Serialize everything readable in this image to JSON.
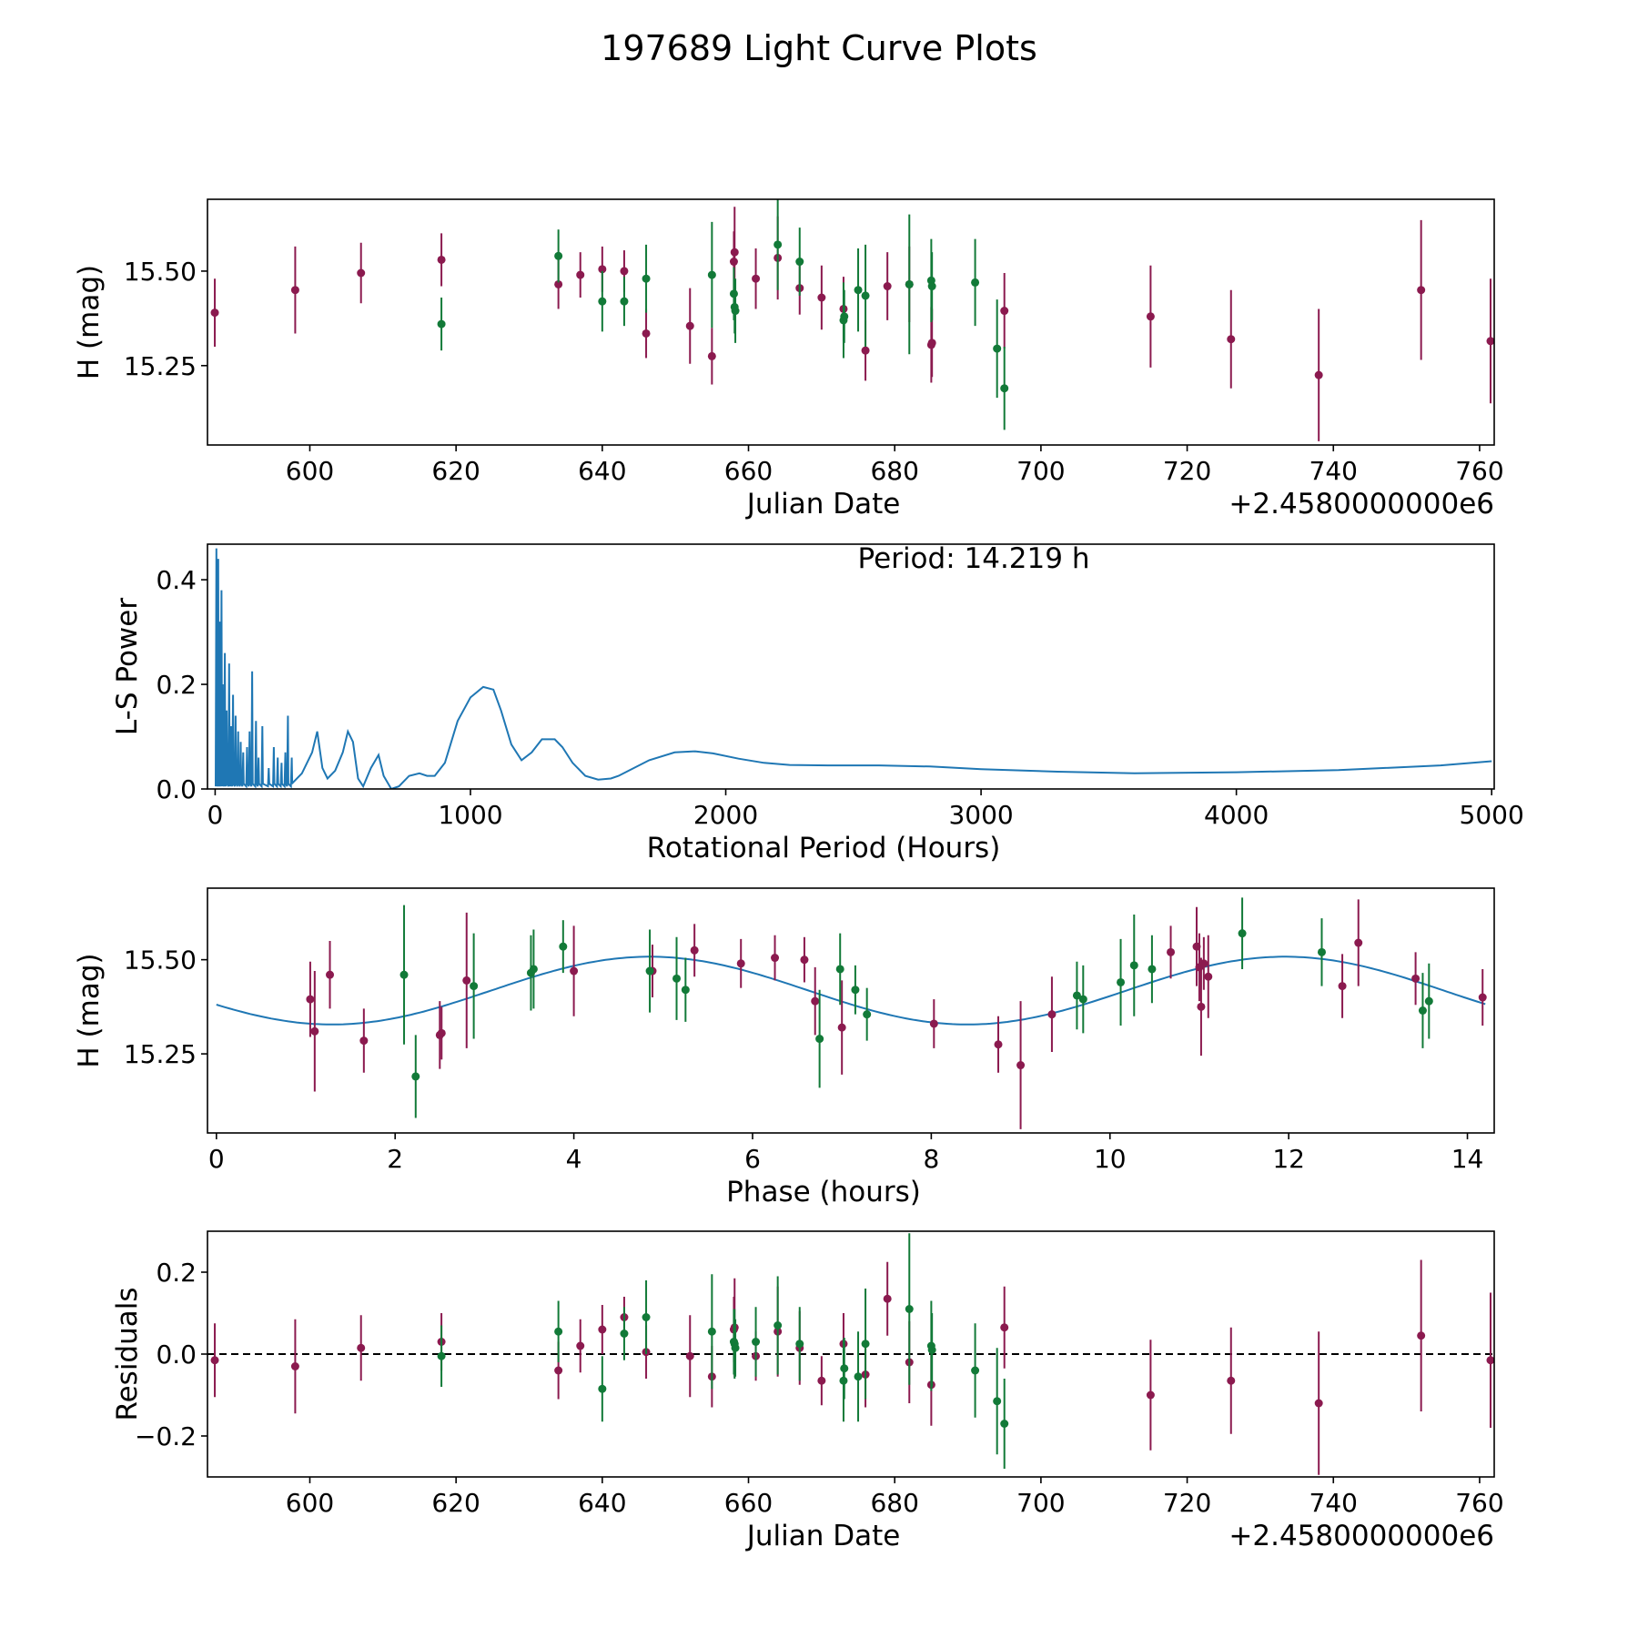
{
  "title": "197689 Light Curve Plots",
  "colors": {
    "red": "#8b1a4f",
    "green": "#127a38",
    "line": "#1f77b4",
    "axis": "#000000"
  },
  "offset_label": "+2.4580000000e6",
  "chart_data": [
    {
      "type": "scatter",
      "panel": "light-curve",
      "xlabel": "Julian Date",
      "ylabel": "H (mag)",
      "xlim": [
        586,
        762
      ],
      "ylim": [
        15.04,
        15.69
      ],
      "xticks": [
        600,
        620,
        640,
        660,
        680,
        700,
        720,
        740,
        760
      ],
      "yticks": [
        15.25,
        15.5
      ],
      "ytick_labels": [
        "15.25",
        "15.50"
      ],
      "offset_label": "+2.4580000000e6",
      "series": [
        {
          "name": "red",
          "points": [
            [
              587.0,
              15.39,
              0.09
            ],
            [
              598.0,
              15.45,
              0.115
            ],
            [
              607.0,
              15.495,
              0.08
            ],
            [
              618.0,
              15.53,
              0.07
            ],
            [
              634.0,
              15.465,
              0.065
            ],
            [
              637.0,
              15.49,
              0.06
            ],
            [
              640.0,
              15.505,
              0.06
            ],
            [
              643.0,
              15.5,
              0.055
            ],
            [
              646.0,
              15.335,
              0.065
            ],
            [
              652.0,
              15.355,
              0.1
            ],
            [
              655.0,
              15.275,
              0.075
            ],
            [
              658.0,
              15.525,
              0.08
            ],
            [
              658.1,
              15.55,
              0.12
            ],
            [
              661.0,
              15.48,
              0.08
            ],
            [
              664.0,
              15.535,
              0.11
            ],
            [
              667.0,
              15.455,
              0.07
            ],
            [
              670.0,
              15.43,
              0.085
            ],
            [
              673.0,
              15.4,
              0.085
            ],
            [
              676.0,
              15.29,
              0.08
            ],
            [
              679.0,
              15.46,
              0.09
            ],
            [
              682.0,
              15.465,
              0.1
            ],
            [
              685.0,
              15.305,
              0.1
            ],
            [
              685.1,
              15.31,
              0.09
            ],
            [
              695.0,
              15.395,
              0.1
            ],
            [
              715.0,
              15.38,
              0.135
            ],
            [
              726.0,
              15.32,
              0.13
            ],
            [
              738.0,
              15.225,
              0.175
            ],
            [
              752.0,
              15.45,
              0.185
            ],
            [
              761.5,
              15.315,
              0.165
            ]
          ]
        },
        {
          "name": "green",
          "points": [
            [
              618.0,
              15.36,
              0.07
            ],
            [
              634.0,
              15.54,
              0.07
            ],
            [
              640.0,
              15.42,
              0.08
            ],
            [
              643.0,
              15.42,
              0.065
            ],
            [
              646.0,
              15.48,
              0.09
            ],
            [
              655.0,
              15.49,
              0.14
            ],
            [
              658.0,
              15.44,
              0.07
            ],
            [
              658.1,
              15.405,
              0.07
            ],
            [
              658.2,
              15.395,
              0.085
            ],
            [
              664.0,
              15.57,
              0.12
            ],
            [
              667.0,
              15.525,
              0.09
            ],
            [
              673.0,
              15.37,
              0.1
            ],
            [
              673.1,
              15.38,
              0.07
            ],
            [
              675.0,
              15.45,
              0.11
            ],
            [
              676.0,
              15.435,
              0.135
            ],
            [
              682.0,
              15.465,
              0.185
            ],
            [
              685.0,
              15.475,
              0.11
            ],
            [
              685.1,
              15.46,
              0.09
            ],
            [
              691.0,
              15.47,
              0.115
            ],
            [
              694.0,
              15.295,
              0.13
            ],
            [
              695.0,
              15.19,
              0.11
            ]
          ]
        }
      ]
    },
    {
      "type": "line",
      "panel": "periodogram",
      "xlabel": "Rotational Period (Hours)",
      "ylabel": "L-S Power",
      "xlim": [
        -30,
        5010
      ],
      "ylim": [
        0,
        0.468
      ],
      "xticks": [
        0,
        1000,
        2000,
        3000,
        4000,
        5000
      ],
      "yticks": [
        0,
        0.2,
        0.4
      ],
      "ytick_labels": [
        "0.0",
        "0.2",
        "0.4"
      ],
      "annotation": "Period: 14.219 h",
      "noise_region": {
        "x_max": 300,
        "peaks": [
          [
            5,
            0.46
          ],
          [
            12,
            0.44
          ],
          [
            18,
            0.32
          ],
          [
            25,
            0.38
          ],
          [
            30,
            0.2
          ],
          [
            38,
            0.26
          ],
          [
            45,
            0.15
          ],
          [
            55,
            0.24
          ],
          [
            62,
            0.12
          ],
          [
            70,
            0.18
          ],
          [
            80,
            0.14
          ],
          [
            90,
            0.11
          ],
          [
            100,
            0.09
          ],
          [
            110,
            0.07
          ],
          [
            125,
            0.08
          ],
          [
            135,
            0.11
          ],
          [
            145,
            0.225
          ],
          [
            160,
            0.13
          ],
          [
            170,
            0.06
          ],
          [
            185,
            0.12
          ],
          [
            210,
            0.04
          ],
          [
            230,
            0.08
          ],
          [
            245,
            0.06
          ],
          [
            260,
            0.05
          ],
          [
            275,
            0.07
          ],
          [
            285,
            0.14
          ],
          [
            300,
            0.06
          ]
        ]
      },
      "x": [
        300,
        340,
        380,
        400,
        420,
        440,
        470,
        500,
        520,
        540,
        560,
        580,
        610,
        640,
        660,
        690,
        720,
        760,
        800,
        830,
        860,
        900,
        950,
        1000,
        1050,
        1090,
        1120,
        1160,
        1200,
        1240,
        1280,
        1330,
        1360,
        1400,
        1450,
        1500,
        1550,
        1580,
        1620,
        1700,
        1800,
        1880,
        1950,
        2050,
        2150,
        2250,
        2400,
        2600,
        2800,
        3000,
        3300,
        3600,
        4000,
        4400,
        4800,
        5000
      ],
      "values": [
        0.01,
        0.03,
        0.07,
        0.11,
        0.04,
        0.02,
        0.035,
        0.07,
        0.11,
        0.09,
        0.02,
        0.005,
        0.04,
        0.065,
        0.025,
        0.0,
        0.005,
        0.025,
        0.03,
        0.025,
        0.025,
        0.05,
        0.13,
        0.175,
        0.195,
        0.19,
        0.15,
        0.085,
        0.055,
        0.07,
        0.095,
        0.095,
        0.08,
        0.05,
        0.025,
        0.018,
        0.02,
        0.025,
        0.035,
        0.055,
        0.07,
        0.072,
        0.068,
        0.058,
        0.05,
        0.046,
        0.045,
        0.045,
        0.043,
        0.038,
        0.033,
        0.03,
        0.032,
        0.036,
        0.045,
        0.053
      ]
    },
    {
      "type": "scatter",
      "panel": "phase-folded",
      "xlabel": "Phase (hours)",
      "ylabel": "H (mag)",
      "xlim": [
        -0.1,
        14.3
      ],
      "ylim": [
        15.04,
        15.69
      ],
      "xticks": [
        0,
        2,
        4,
        6,
        8,
        10,
        12,
        14
      ],
      "yticks": [
        15.25,
        15.5
      ],
      "ytick_labels": [
        "15.25",
        "15.50"
      ],
      "model": {
        "mean": 15.418,
        "amplitude": 0.09,
        "peak_phase": 4.85,
        "period": 7.11
      },
      "series": [
        {
          "name": "red",
          "points": [
            [
              1.05,
              15.395,
              0.1
            ],
            [
              1.1,
              15.31,
              0.16
            ],
            [
              1.27,
              15.46,
              0.09
            ],
            [
              1.65,
              15.285,
              0.085
            ],
            [
              2.5,
              15.3,
              0.09
            ],
            [
              2.52,
              15.305,
              0.07
            ],
            [
              2.8,
              15.445,
              0.18
            ],
            [
              4.0,
              15.47,
              0.12
            ],
            [
              4.88,
              15.47,
              0.07
            ],
            [
              5.35,
              15.525,
              0.07
            ],
            [
              5.87,
              15.49,
              0.065
            ],
            [
              6.25,
              15.505,
              0.06
            ],
            [
              6.58,
              15.5,
              0.06
            ],
            [
              6.7,
              15.39,
              0.09
            ],
            [
              7.0,
              15.32,
              0.125
            ],
            [
              8.03,
              15.33,
              0.065
            ],
            [
              8.75,
              15.275,
              0.075
            ],
            [
              9.0,
              15.22,
              0.17
            ],
            [
              9.35,
              15.355,
              0.1
            ],
            [
              10.68,
              15.52,
              0.07
            ],
            [
              10.97,
              15.535,
              0.105
            ],
            [
              11.0,
              15.48,
              0.09
            ],
            [
              11.02,
              15.375,
              0.13
            ],
            [
              11.1,
              15.455,
              0.11
            ],
            [
              12.6,
              15.43,
              0.085
            ],
            [
              12.78,
              15.545,
              0.115
            ],
            [
              13.42,
              15.45,
              0.07
            ],
            [
              14.17,
              15.4,
              0.075
            ],
            [
              11.05,
              15.49,
              0.07
            ]
          ]
        },
        {
          "name": "green",
          "points": [
            [
              2.1,
              15.46,
              0.185
            ],
            [
              2.23,
              15.19,
              0.11
            ],
            [
              2.88,
              15.43,
              0.14
            ],
            [
              3.52,
              15.465,
              0.1
            ],
            [
              3.55,
              15.475,
              0.105
            ],
            [
              3.88,
              15.535,
              0.07
            ],
            [
              4.85,
              15.47,
              0.11
            ],
            [
              5.15,
              15.45,
              0.11
            ],
            [
              5.25,
              15.42,
              0.085
            ],
            [
              6.75,
              15.29,
              0.13
            ],
            [
              6.98,
              15.475,
              0.095
            ],
            [
              7.15,
              15.42,
              0.065
            ],
            [
              7.28,
              15.355,
              0.07
            ],
            [
              9.63,
              15.405,
              0.09
            ],
            [
              9.7,
              15.395,
              0.09
            ],
            [
              10.12,
              15.44,
              0.115
            ],
            [
              10.27,
              15.485,
              0.135
            ],
            [
              10.47,
              15.475,
              0.09
            ],
            [
              11.48,
              15.57,
              0.095
            ],
            [
              12.37,
              15.52,
              0.09
            ],
            [
              13.5,
              15.365,
              0.1
            ],
            [
              13.57,
              15.39,
              0.1
            ]
          ]
        }
      ]
    },
    {
      "type": "scatter",
      "panel": "residuals",
      "xlabel": "Julian Date",
      "ylabel": "Residuals",
      "xlim": [
        586,
        762
      ],
      "ylim": [
        -0.3,
        0.3
      ],
      "xticks": [
        600,
        620,
        640,
        660,
        680,
        700,
        720,
        740,
        760
      ],
      "yticks": [
        -0.2,
        0.0,
        0.2
      ],
      "ytick_labels": [
        "−0.2",
        "0.0",
        "0.2"
      ],
      "offset_label": "+2.4580000000e6",
      "reference_line": 0.0,
      "series": [
        {
          "name": "red",
          "points": [
            [
              587.0,
              -0.015,
              0.09
            ],
            [
              598.0,
              -0.03,
              0.115
            ],
            [
              607.0,
              0.015,
              0.08
            ],
            [
              618.0,
              0.03,
              0.07
            ],
            [
              634.0,
              -0.04,
              0.07
            ],
            [
              637.0,
              0.02,
              0.065
            ],
            [
              640.0,
              0.06,
              0.06
            ],
            [
              643.0,
              0.09,
              0.05
            ],
            [
              646.0,
              0.005,
              0.065
            ],
            [
              652.0,
              -0.005,
              0.1
            ],
            [
              655.0,
              -0.055,
              0.075
            ],
            [
              658.0,
              0.06,
              0.08
            ],
            [
              658.1,
              0.065,
              0.12
            ],
            [
              661.0,
              -0.005,
              0.06
            ],
            [
              664.0,
              0.055,
              0.11
            ],
            [
              667.0,
              0.015,
              0.09
            ],
            [
              670.0,
              -0.065,
              0.06
            ],
            [
              673.0,
              0.025,
              0.075
            ],
            [
              676.0,
              -0.05,
              0.08
            ],
            [
              679.0,
              0.135,
              0.09
            ],
            [
              682.0,
              -0.02,
              0.1
            ],
            [
              685.0,
              -0.075,
              0.1
            ],
            [
              695.0,
              0.065,
              0.1
            ],
            [
              715.0,
              -0.1,
              0.135
            ],
            [
              726.0,
              -0.065,
              0.13
            ],
            [
              738.0,
              -0.12,
              0.175
            ],
            [
              752.0,
              0.045,
              0.185
            ],
            [
              761.5,
              -0.015,
              0.165
            ]
          ]
        },
        {
          "name": "green",
          "points": [
            [
              618.0,
              -0.005,
              0.075
            ],
            [
              634.0,
              0.055,
              0.075
            ],
            [
              640.0,
              -0.085,
              0.08
            ],
            [
              643.0,
              0.05,
              0.065
            ],
            [
              646.0,
              0.09,
              0.09
            ],
            [
              655.0,
              0.055,
              0.14
            ],
            [
              658.0,
              0.03,
              0.08
            ],
            [
              658.1,
              0.025,
              0.085
            ],
            [
              658.2,
              0.015,
              0.07
            ],
            [
              661.0,
              0.03,
              0.085
            ],
            [
              664.0,
              0.07,
              0.12
            ],
            [
              667.0,
              0.025,
              0.09
            ],
            [
              673.0,
              -0.065,
              0.1
            ],
            [
              673.1,
              -0.035,
              0.075
            ],
            [
              675.0,
              -0.055,
              0.11
            ],
            [
              676.0,
              0.025,
              0.135
            ],
            [
              682.0,
              0.11,
              0.185
            ],
            [
              685.0,
              0.02,
              0.11
            ],
            [
              685.1,
              0.01,
              0.09
            ],
            [
              691.0,
              -0.04,
              0.115
            ],
            [
              694.0,
              -0.115,
              0.13
            ],
            [
              695.0,
              -0.17,
              0.11
            ]
          ]
        }
      ]
    }
  ]
}
